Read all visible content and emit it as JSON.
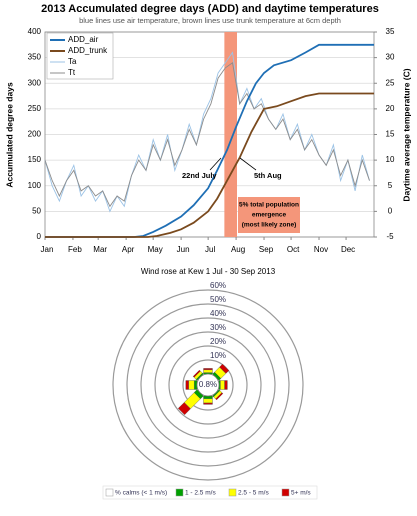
{
  "chart_data": [
    {
      "type": "line",
      "title": "2013 Accumulated degree days (ADD) and daytime temperatures",
      "subtitle": "blue lines use air temperature, brown lines use trunk temperature at 6cm depth",
      "ylabel": "Accumulated degree days",
      "y2label": "Daytime average temperature (C)",
      "xlim": [
        1,
        366
      ],
      "xticks": [
        {
          "value": 1,
          "label": "Jan"
        },
        {
          "value": 32,
          "label": "Feb"
        },
        {
          "value": 60,
          "label": "Mar"
        },
        {
          "value": 91,
          "label": "Apr"
        },
        {
          "value": 121,
          "label": "May"
        },
        {
          "value": 152,
          "label": "Jun"
        },
        {
          "value": 182,
          "label": "Jul"
        },
        {
          "value": 213,
          "label": "Aug"
        },
        {
          "value": 244,
          "label": "Sep"
        },
        {
          "value": 274,
          "label": "Oct"
        },
        {
          "value": 305,
          "label": "Nov"
        },
        {
          "value": 335,
          "label": "Dec"
        }
      ],
      "ylim": [
        0,
        400
      ],
      "yticks": [
        0,
        50,
        100,
        150,
        200,
        250,
        300,
        350,
        400
      ],
      "y2lim": [
        -5,
        35
      ],
      "y2ticks": [
        -5,
        0,
        5,
        10,
        15,
        20,
        25,
        30,
        35
      ],
      "grid": true,
      "legend": "upper left",
      "highlight_x": [
        200,
        214
      ],
      "highlight_color": "#f4967a",
      "annotations": [
        "22nd July",
        "5th Aug"
      ],
      "note_lines": [
        "5% total population",
        "emergence",
        "(most likely zone)"
      ],
      "series": [
        {
          "name": "ADD_air",
          "color": "#1f6fb5",
          "x": [
            1,
            100,
            110,
            121,
            135,
            152,
            166,
            182,
            192,
            203,
            213,
            225,
            235,
            244,
            255,
            274,
            290,
            305,
            366
          ],
          "values": [
            0,
            0,
            2,
            10,
            22,
            40,
            62,
            95,
            130,
            170,
            215,
            265,
            300,
            320,
            335,
            345,
            360,
            375,
            375
          ]
        },
        {
          "name": "ADD_trunk",
          "color": "#7a4a1e",
          "x": [
            1,
            115,
            125,
            140,
            152,
            166,
            182,
            192,
            203,
            217,
            230,
            244,
            258,
            274,
            290,
            305,
            366
          ],
          "values": [
            0,
            0,
            2,
            8,
            15,
            28,
            50,
            75,
            110,
            155,
            205,
            250,
            255,
            265,
            275,
            280,
            280
          ]
        },
        {
          "name": "Ta",
          "color": "#9cc3e6",
          "axis": "y2",
          "x": [
            1,
            9,
            17,
            25,
            33,
            41,
            49,
            57,
            65,
            73,
            81,
            89,
            97,
            105,
            113,
            121,
            129,
            137,
            145,
            153,
            161,
            169,
            177,
            185,
            193,
            201,
            209,
            217,
            225,
            233,
            241,
            249,
            257,
            265,
            273,
            281,
            289,
            297,
            305,
            313,
            321,
            329,
            337,
            345,
            353,
            361
          ],
          "values": [
            10,
            5,
            2,
            6,
            9,
            3,
            5,
            2,
            4,
            0,
            3,
            1,
            7,
            11,
            8,
            14,
            10,
            15,
            8,
            12,
            17,
            13,
            19,
            22,
            27,
            29,
            31,
            21,
            24,
            20,
            22,
            18,
            16,
            19,
            14,
            17,
            12,
            15,
            11,
            9,
            13,
            6,
            10,
            4,
            11,
            6
          ]
        },
        {
          "name": "Tt",
          "color": "#8c8c8c",
          "axis": "y2",
          "x": [
            1,
            9,
            17,
            25,
            33,
            41,
            49,
            57,
            65,
            73,
            81,
            89,
            97,
            105,
            113,
            121,
            129,
            137,
            145,
            153,
            161,
            169,
            177,
            185,
            193,
            201,
            209,
            217,
            225,
            233,
            241,
            249,
            257,
            265,
            273,
            281,
            289,
            297,
            305,
            313,
            321,
            329,
            337,
            345,
            353,
            361
          ],
          "values": [
            10,
            6,
            3,
            6,
            8,
            4,
            5,
            3,
            4,
            1,
            3,
            2,
            7,
            10,
            8,
            13,
            10,
            14,
            9,
            12,
            16,
            13,
            18,
            21,
            26,
            28,
            29,
            21,
            23,
            20,
            21,
            18,
            16,
            18,
            14,
            16,
            12,
            14,
            11,
            9,
            12,
            7,
            10,
            5,
            10,
            6
          ]
        }
      ]
    },
    {
      "type": "windrose",
      "title": "Wind rose at Kew 1 Jul - 30 Sep 2013",
      "categories": [
        null,
        null,
        null,
        null,
        null,
        null,
        null,
        null
      ],
      "rlim": [
        0,
        60
      ],
      "rticks": [
        {
          "value": 10,
          "label": "10%"
        },
        {
          "value": 20,
          "label": "20%"
        },
        {
          "value": 30,
          "label": "30%"
        },
        {
          "value": 40,
          "label": "40%"
        },
        {
          "value": 50,
          "label": "50%"
        },
        {
          "value": 60,
          "label": "60%"
        }
      ],
      "calm": {
        "name": "% calms (< 1 m/s)",
        "color": "#ffffff",
        "value": 0.8,
        "value_label": "0.8%"
      },
      "series": [
        {
          "name": "1 - 2.5 m/s",
          "color": "#00a000",
          "values": [
            1,
            2,
            1,
            1,
            2,
            3,
            2,
            1
          ]
        },
        {
          "name": "2.5 - 5 m/s",
          "color": "#ffff00",
          "values": [
            2,
            5,
            3,
            2,
            3,
            10,
            4,
            2
          ]
        },
        {
          "name": "5+ m/s",
          "color": "#d00000",
          "values": [
            1,
            3,
            2,
            1,
            1,
            6,
            2,
            1
          ]
        }
      ]
    }
  ]
}
